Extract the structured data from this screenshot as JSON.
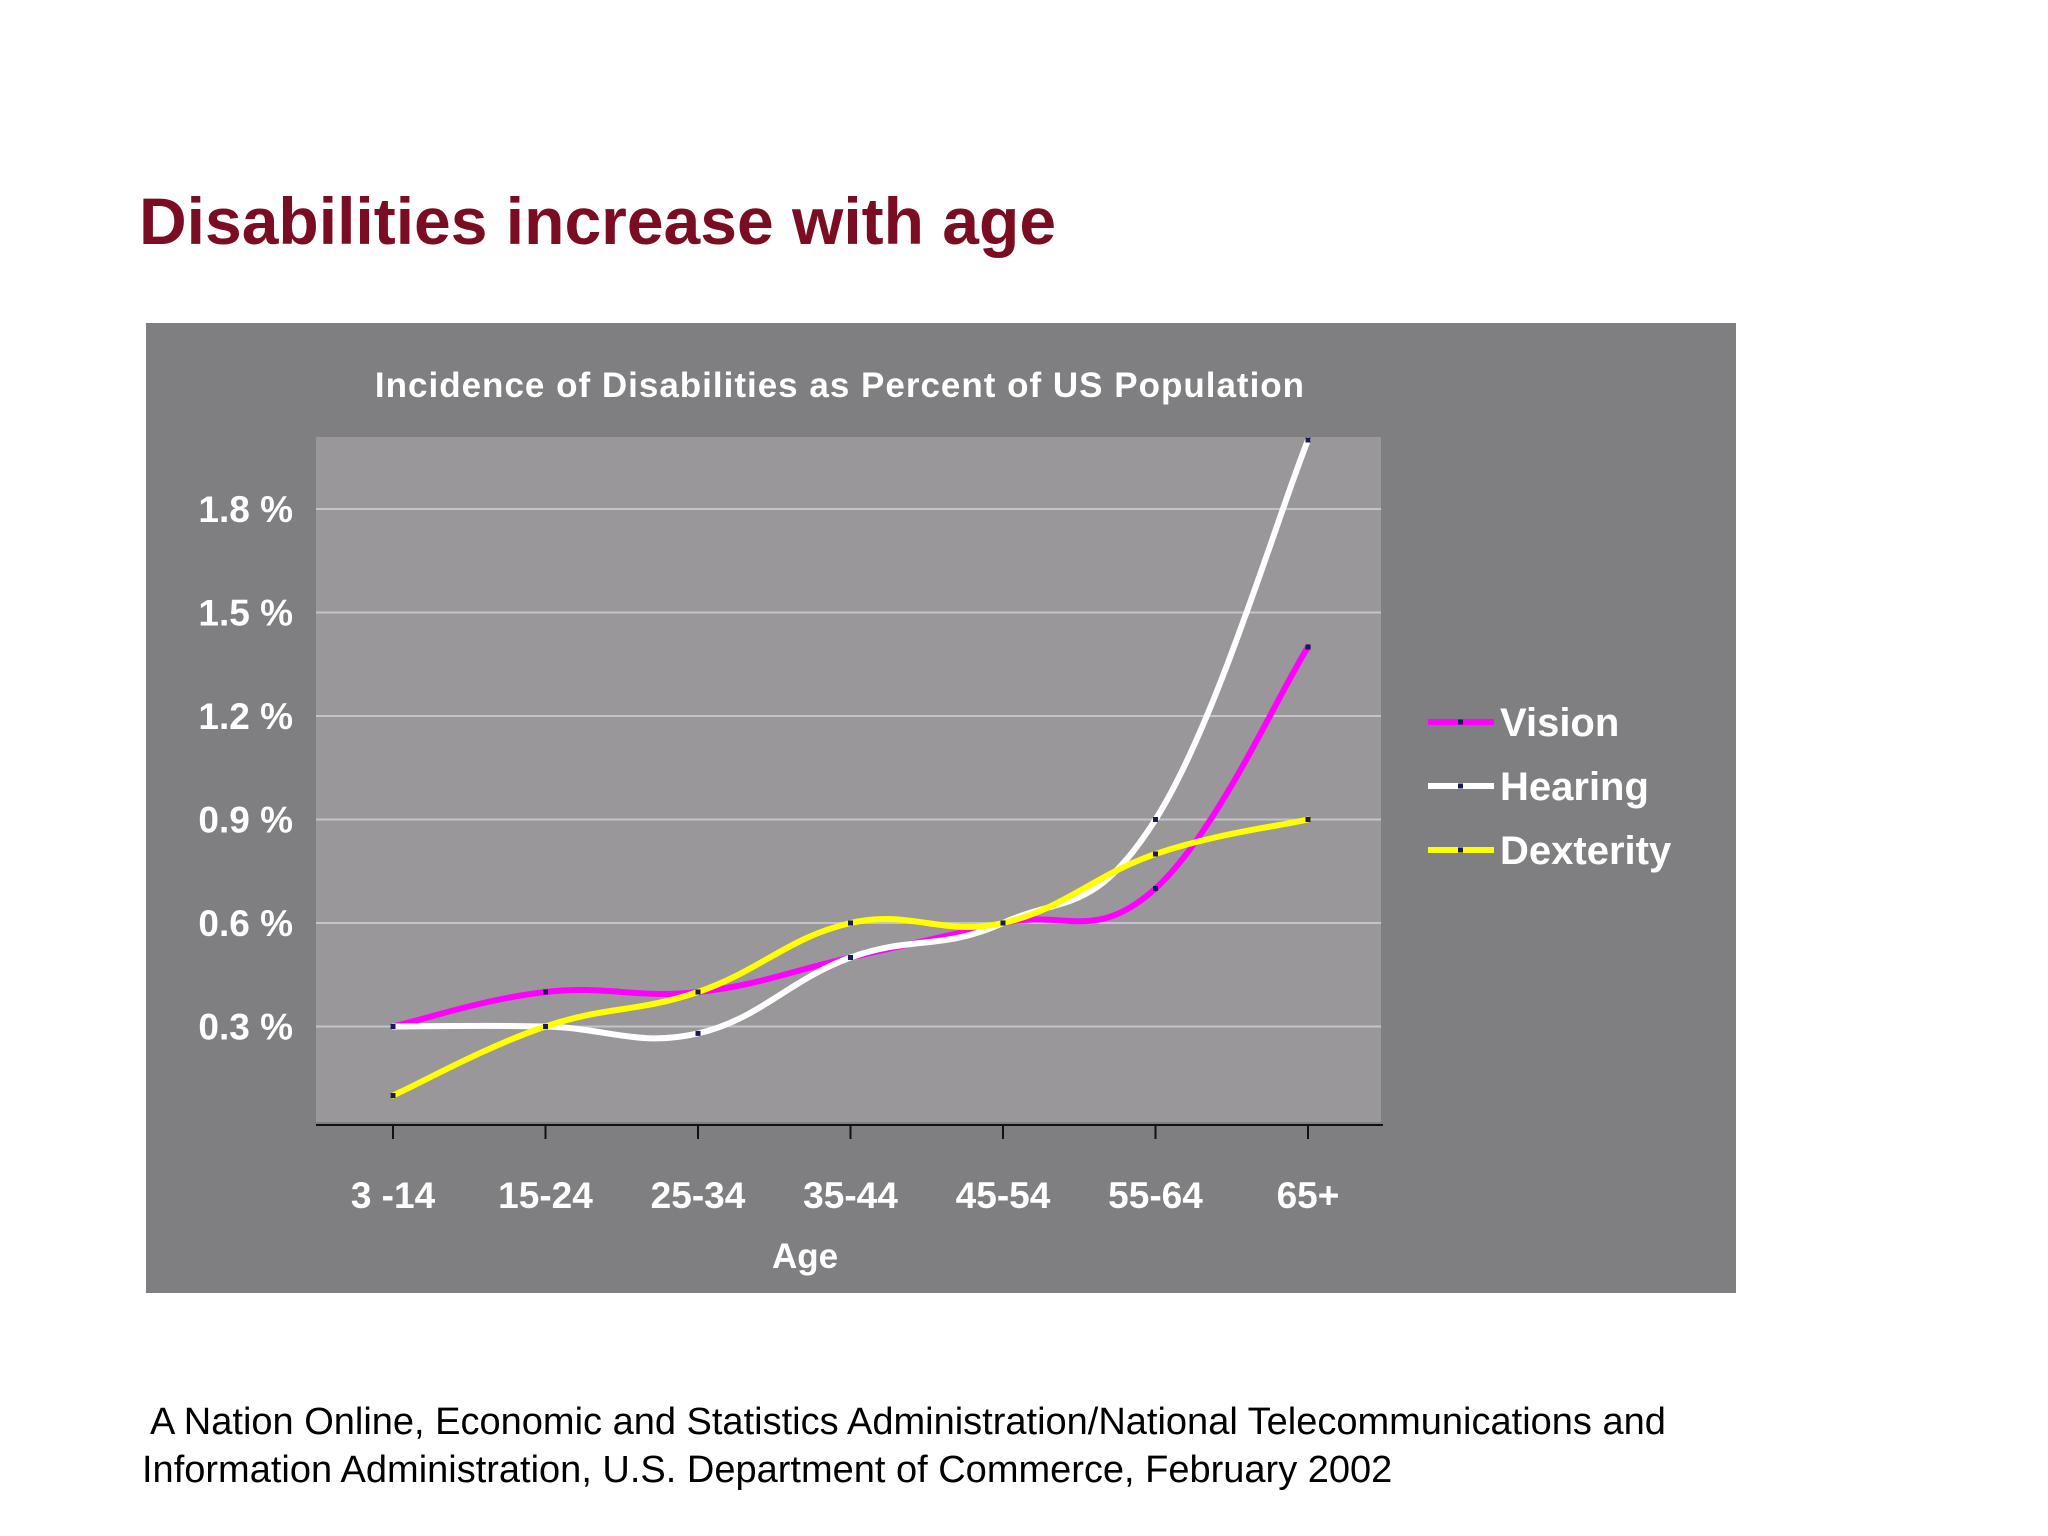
{
  "slide": {
    "title": "Disabilities increase with age"
  },
  "source": {
    "line1": "A Nation Online, Economic and Statistics Administration/National Telecommunications and",
    "line2": "Information Administration, U.S. Department of Commerce, February 2002"
  },
  "colors": {
    "title": "#7a0d22",
    "chart_background": "#7f7e80",
    "plot_background": "#999799",
    "gridline": "#c4c3c5",
    "axis_text": "#ffffff",
    "vision": "#ff00ff",
    "hearing": "#ffffff",
    "dexterity": "#ffff00"
  },
  "chart_data": {
    "type": "line",
    "title": "Incidence of Disabilities as Percent of US Population",
    "xlabel": "Age",
    "ylabel": "",
    "categories": [
      "3 -14",
      "15-24",
      "25-34",
      "35-44",
      "45-54",
      "55-64",
      "65+"
    ],
    "ylim": [
      0.0,
      2.0
    ],
    "yticks": [
      {
        "value": 0.3,
        "label": "0.3 %"
      },
      {
        "value": 0.6,
        "label": "0.6 %"
      },
      {
        "value": 0.9,
        "label": "0.9 %"
      },
      {
        "value": 1.2,
        "label": "1.2 %"
      },
      {
        "value": 1.5,
        "label": "1.5 %"
      },
      {
        "value": 1.8,
        "label": "1.8 %"
      }
    ],
    "grid": true,
    "legend_position": "right",
    "series": [
      {
        "name": "Vision",
        "color": "#ff00ff",
        "values": [
          0.3,
          0.4,
          0.4,
          0.5,
          0.6,
          0.7,
          1.4
        ]
      },
      {
        "name": "Hearing",
        "color": "#ffffff",
        "values": [
          0.3,
          0.3,
          0.28,
          0.5,
          0.6,
          0.9,
          2.0
        ]
      },
      {
        "name": "Dexterity",
        "color": "#ffff00",
        "values": [
          0.1,
          0.3,
          0.4,
          0.6,
          0.6,
          0.8,
          0.9
        ]
      }
    ]
  }
}
